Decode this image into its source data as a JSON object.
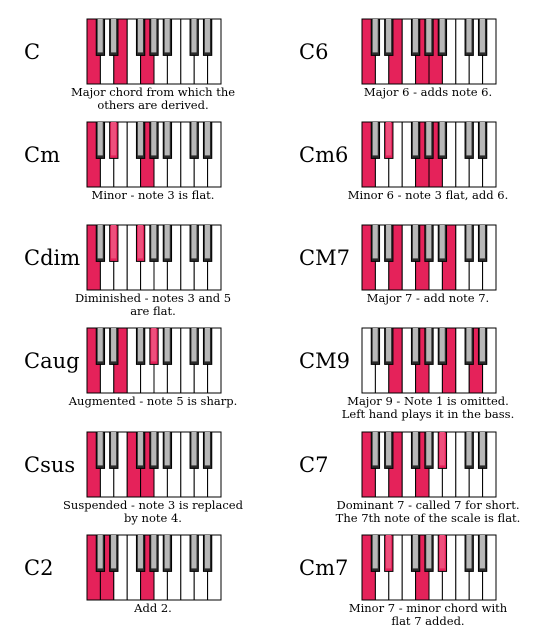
{
  "colors": {
    "background": "#ffffff",
    "white_key": "#ffffff",
    "black_key": "#2b2b2b",
    "black_key_shade": "#b8b8b8",
    "highlight": "#e5225a",
    "outline": "#000000"
  },
  "keyboard": {
    "white_key_count": 10,
    "black_key_positions": [
      1,
      2,
      4,
      5,
      6,
      8,
      9
    ],
    "black_key_names": [
      "C#",
      "D#",
      "F#",
      "G#",
      "A#",
      "C#",
      "D#"
    ]
  },
  "chords": [
    {
      "name": "C",
      "caption": "Major chord from which the\nothers are derived.",
      "white_keys": [
        0,
        2,
        4
      ],
      "black_keys": []
    },
    {
      "name": "C6",
      "caption": "Major 6 - adds note 6.",
      "white_keys": [
        0,
        2,
        4,
        5
      ],
      "black_keys": []
    },
    {
      "name": "Cm",
      "caption": "Minor - note 3 is flat.",
      "white_keys": [
        0,
        4
      ],
      "black_keys": [
        1
      ]
    },
    {
      "name": "Cm6",
      "caption": "Minor 6 - note 3 flat, add 6.",
      "white_keys": [
        0,
        4,
        5
      ],
      "black_keys": [
        1
      ]
    },
    {
      "name": "Cdim",
      "caption": "Diminished - notes 3 and 5\nare flat.",
      "white_keys": [
        0
      ],
      "black_keys": [
        1,
        2
      ]
    },
    {
      "name": "CM7",
      "caption": "Major 7 - add note 7.",
      "white_keys": [
        0,
        2,
        4,
        6
      ],
      "black_keys": []
    },
    {
      "name": "Caug",
      "caption": "Augmented - note 5 is sharp.",
      "white_keys": [
        0,
        2
      ],
      "black_keys": [
        3
      ]
    },
    {
      "name": "CM9",
      "caption": "Major 9 - Note 1 is omitted.\nLeft hand plays it in the bass.",
      "white_keys": [
        2,
        4,
        6,
        8
      ],
      "black_keys": []
    },
    {
      "name": "Csus",
      "caption": "Suspended - note 3 is replaced\nby note 4.",
      "white_keys": [
        0,
        3,
        4
      ],
      "black_keys": []
    },
    {
      "name": "C7",
      "caption": "Dominant 7 - called 7 for short.\nThe 7th note of the scale is flat.",
      "white_keys": [
        0,
        2,
        4
      ],
      "black_keys": [
        4
      ]
    },
    {
      "name": "C2",
      "caption": "Add 2.",
      "white_keys": [
        0,
        1,
        4
      ],
      "black_keys": []
    },
    {
      "name": "Cm7",
      "caption": "Minor 7 - minor chord with\nflat 7 added.",
      "white_keys": [
        0,
        4
      ],
      "black_keys": [
        1,
        4
      ]
    }
  ]
}
